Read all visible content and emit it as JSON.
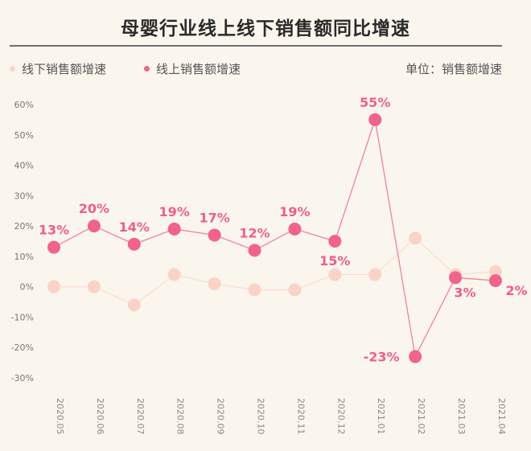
{
  "chart_data": {
    "type": "line",
    "title": "母婴行业线上线下销售额同比增速",
    "unit_label": "单位：销售额增速",
    "xlabel": "",
    "ylabel": "",
    "categories": [
      "2020.05",
      "2020.06",
      "2020.07",
      "2020.08",
      "2020.09",
      "2020.10",
      "2020.11",
      "2020.12",
      "2021.01",
      "2021.02",
      "2021.03",
      "2021.04"
    ],
    "yticks": [
      "60%",
      "50%",
      "40%",
      "30%",
      "20%",
      "10%",
      "0%",
      "-10%",
      "-20%",
      "-30%"
    ],
    "ylim": [
      -30,
      60
    ],
    "grid": false,
    "legend_placement": "top-left",
    "series": [
      {
        "name": "线下销售额增速",
        "color": "#f9d3c7",
        "values": [
          0,
          0,
          -6,
          4,
          1,
          -1,
          -1,
          4,
          4,
          16,
          4,
          5
        ],
        "labels": []
      },
      {
        "name": "线上销售额增速",
        "color": "#f0638a",
        "values": [
          13,
          20,
          14,
          19,
          17,
          12,
          19,
          15,
          55,
          -23,
          3,
          2
        ],
        "labels": [
          "13%",
          "20%",
          "14%",
          "19%",
          "17%",
          "12%",
          "19%",
          "15%",
          "55%",
          "-23%",
          "3%",
          "2%"
        ]
      }
    ]
  }
}
